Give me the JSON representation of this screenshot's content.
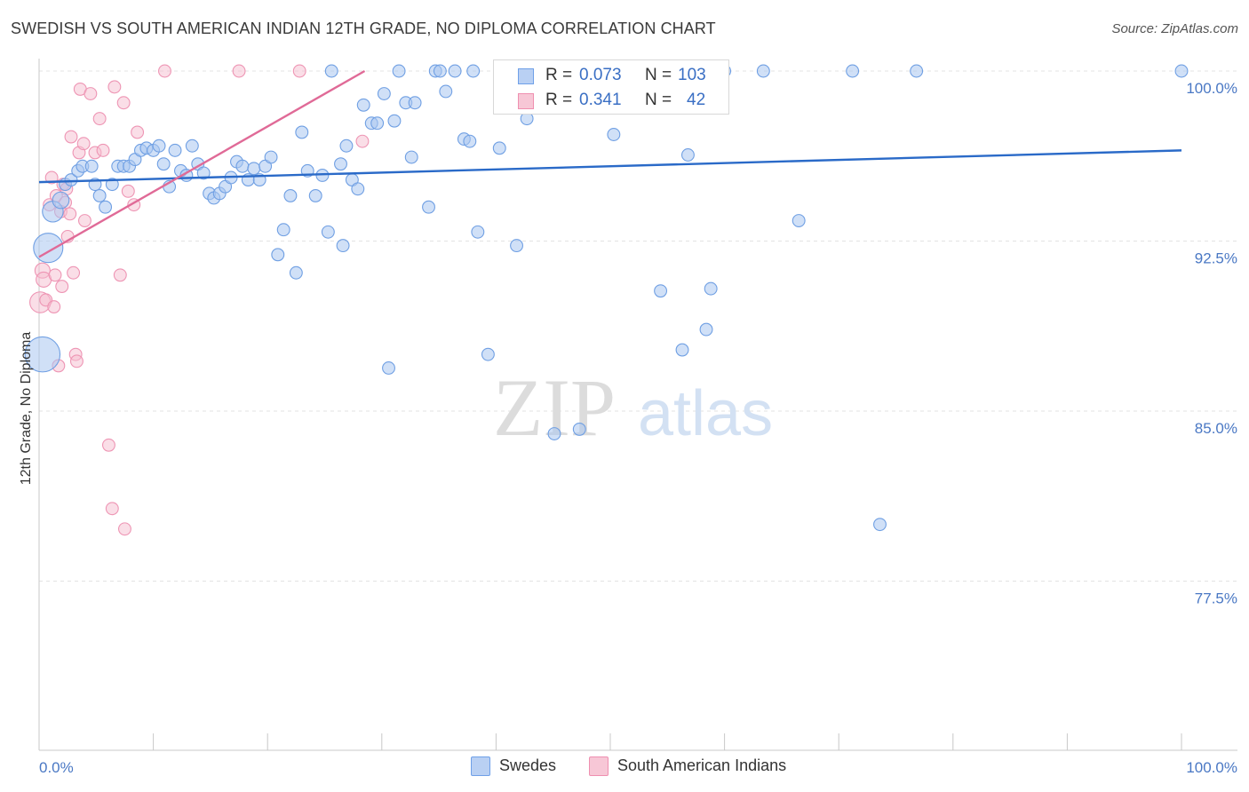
{
  "title": "SWEDISH VS SOUTH AMERICAN INDIAN 12TH GRADE, NO DIPLOMA CORRELATION CHART",
  "source": "Source: ZipAtlas.com",
  "colors": {
    "swedes": "#6fa0e8",
    "swedes_fill": "#b9d0f3",
    "swedes_line": "#2a6ac8",
    "sai": "#ef8fb0",
    "sai_fill": "#f7c7d6",
    "sai_line": "#e06a97",
    "tick": "#4a78c4"
  },
  "legend": {
    "rows": [
      {
        "r_label": "R =",
        "r_value": "0.073",
        "n_label": "N =",
        "n_value": "103"
      },
      {
        "r_label": "R =",
        "r_value": "0.341",
        "n_label": "N =",
        "n_value": "42"
      }
    ]
  },
  "bottom_legend": {
    "swedes": "Swedes",
    "sai": "South American Indians"
  },
  "chart_data": {
    "type": "scatter",
    "title": "SWEDISH VS SOUTH AMERICAN INDIAN 12TH GRADE, NO DIPLOMA CORRELATION CHART",
    "xlabel": "",
    "ylabel": "12th Grade, No Diploma",
    "xlim": [
      0,
      100
    ],
    "ylim": [
      70,
      100.6
    ],
    "x_tick_labels": [
      "0.0%",
      "100.0%"
    ],
    "y_ticks": [
      77.5,
      85.0,
      92.5,
      100.0
    ],
    "y_tick_labels": [
      "77.5%",
      "85.0%",
      "92.5%",
      "100.0%"
    ],
    "grid": "horizontal dashed",
    "legend_position": "top-center",
    "series": [
      {
        "name": "Swedes",
        "r": 0.073,
        "n": 103,
        "trend": {
          "x": [
            0,
            100
          ],
          "y": [
            95.1,
            96.5
          ]
        },
        "points": [
          [
            0.3,
            87.5,
            2.4
          ],
          [
            0.8,
            92.2,
            2.0
          ],
          [
            1.2,
            93.8,
            1.4
          ],
          [
            1.9,
            94.3,
            1.1
          ],
          [
            2.3,
            95.0,
            0.8
          ],
          [
            2.8,
            95.2,
            0.8
          ],
          [
            3.4,
            95.6,
            0.8
          ],
          [
            3.8,
            95.8,
            0.8
          ],
          [
            4.6,
            95.8,
            0.8
          ],
          [
            4.9,
            95.0,
            0.8
          ],
          [
            5.3,
            94.5,
            0.8
          ],
          [
            5.8,
            94.0,
            0.8
          ],
          [
            6.4,
            95.0,
            0.8
          ],
          [
            6.9,
            95.8,
            0.8
          ],
          [
            7.4,
            95.8,
            0.8
          ],
          [
            7.9,
            95.8,
            0.8
          ],
          [
            8.4,
            96.1,
            0.8
          ],
          [
            8.9,
            96.5,
            0.8
          ],
          [
            9.4,
            96.6,
            0.8
          ],
          [
            10.0,
            96.5,
            0.8
          ],
          [
            10.5,
            96.7,
            0.8
          ],
          [
            10.9,
            95.9,
            0.8
          ],
          [
            11.4,
            94.9,
            0.8
          ],
          [
            11.9,
            96.5,
            0.8
          ],
          [
            12.4,
            95.6,
            0.8
          ],
          [
            12.9,
            95.4,
            0.8
          ],
          [
            13.4,
            96.7,
            0.8
          ],
          [
            13.9,
            95.9,
            0.8
          ],
          [
            14.4,
            95.5,
            0.8
          ],
          [
            14.9,
            94.6,
            0.8
          ],
          [
            15.3,
            94.4,
            0.8
          ],
          [
            15.8,
            94.6,
            0.8
          ],
          [
            16.3,
            94.9,
            0.8
          ],
          [
            16.8,
            95.3,
            0.8
          ],
          [
            17.3,
            96.0,
            0.8
          ],
          [
            17.8,
            95.8,
            0.8
          ],
          [
            18.3,
            95.2,
            0.8
          ],
          [
            18.8,
            95.7,
            0.8
          ],
          [
            19.3,
            95.2,
            0.8
          ],
          [
            19.8,
            95.8,
            0.8
          ],
          [
            20.3,
            96.2,
            0.8
          ],
          [
            20.9,
            91.9,
            0.8
          ],
          [
            21.4,
            93.0,
            0.8
          ],
          [
            22.0,
            94.5,
            0.8
          ],
          [
            22.5,
            91.1,
            0.8
          ],
          [
            23.0,
            97.3,
            0.8
          ],
          [
            23.5,
            95.6,
            0.8
          ],
          [
            24.2,
            94.5,
            0.8
          ],
          [
            24.8,
            95.4,
            0.8
          ],
          [
            25.3,
            92.9,
            0.8
          ],
          [
            25.6,
            100.0,
            0.8
          ],
          [
            26.4,
            95.9,
            0.8
          ],
          [
            26.6,
            92.3,
            0.8
          ],
          [
            26.9,
            96.7,
            0.8
          ],
          [
            27.4,
            95.2,
            0.8
          ],
          [
            27.9,
            94.8,
            0.8
          ],
          [
            28.4,
            98.5,
            0.8
          ],
          [
            29.1,
            97.7,
            0.8
          ],
          [
            29.6,
            97.7,
            0.8
          ],
          [
            30.2,
            99.0,
            0.8
          ],
          [
            30.6,
            86.9,
            0.8
          ],
          [
            31.1,
            97.8,
            0.8
          ],
          [
            31.5,
            100.0,
            0.8
          ],
          [
            32.1,
            98.6,
            0.8
          ],
          [
            32.6,
            96.2,
            0.8
          ],
          [
            32.9,
            98.6,
            0.8
          ],
          [
            34.1,
            94.0,
            0.8
          ],
          [
            34.7,
            100.0,
            0.8
          ],
          [
            35.1,
            100.0,
            0.8
          ],
          [
            35.6,
            99.1,
            0.8
          ],
          [
            36.4,
            100.0,
            0.8
          ],
          [
            37.2,
            97.0,
            0.8
          ],
          [
            37.7,
            96.9,
            0.8
          ],
          [
            38.4,
            92.9,
            0.8
          ],
          [
            39.3,
            87.5,
            0.8
          ],
          [
            40.3,
            96.6,
            0.8
          ],
          [
            40.6,
            100.0,
            0.8
          ],
          [
            41.8,
            92.3,
            0.8
          ],
          [
            42.7,
            97.9,
            0.8
          ],
          [
            45.1,
            84.0,
            0.8
          ],
          [
            47.3,
            84.2,
            0.8
          ],
          [
            47.9,
            100.0,
            0.8
          ],
          [
            50.3,
            97.2,
            0.8
          ],
          [
            52.1,
            100.0,
            0.8
          ],
          [
            54.4,
            90.3,
            0.8
          ],
          [
            56.3,
            87.7,
            0.8
          ],
          [
            56.8,
            96.3,
            0.8
          ],
          [
            58.4,
            88.6,
            0.8
          ],
          [
            58.8,
            90.4,
            0.8
          ],
          [
            60.0,
            100.0,
            0.8
          ],
          [
            63.4,
            100.0,
            0.8
          ],
          [
            66.5,
            93.4,
            0.8
          ],
          [
            71.2,
            100.0,
            0.8
          ],
          [
            73.6,
            80.0,
            0.8
          ],
          [
            76.8,
            100.0,
            0.8
          ],
          [
            100.0,
            100.0,
            0.8
          ],
          [
            42.0,
            100.0,
            0.8
          ],
          [
            38.0,
            100.0,
            0.8
          ]
        ]
      },
      {
        "name": "South American Indians",
        "r": 0.341,
        "n": 42,
        "trend": {
          "x": [
            0,
            28.5
          ],
          "y": [
            91.8,
            100.0
          ]
        },
        "points": [
          [
            0.1,
            89.8,
            1.4
          ],
          [
            0.3,
            91.2,
            1.0
          ],
          [
            0.4,
            90.8,
            1.0
          ],
          [
            0.6,
            89.9,
            0.8
          ],
          [
            0.9,
            94.1,
            0.8
          ],
          [
            1.1,
            95.3,
            0.8
          ],
          [
            1.3,
            89.6,
            0.8
          ],
          [
            1.4,
            91.0,
            0.8
          ],
          [
            1.5,
            94.5,
            0.8
          ],
          [
            1.7,
            87.0,
            0.8
          ],
          [
            1.9,
            93.8,
            0.8
          ],
          [
            2.0,
            90.5,
            0.8
          ],
          [
            2.1,
            95.0,
            0.8
          ],
          [
            2.3,
            94.2,
            0.8
          ],
          [
            2.4,
            94.8,
            0.8
          ],
          [
            2.5,
            92.7,
            0.8
          ],
          [
            2.7,
            93.7,
            0.8
          ],
          [
            2.8,
            97.1,
            0.8
          ],
          [
            3.0,
            91.1,
            0.8
          ],
          [
            3.2,
            87.5,
            0.8
          ],
          [
            3.3,
            87.2,
            0.8
          ],
          [
            3.5,
            96.4,
            0.8
          ],
          [
            3.6,
            99.2,
            0.8
          ],
          [
            3.9,
            96.8,
            0.8
          ],
          [
            4.0,
            93.4,
            0.8
          ],
          [
            4.5,
            99.0,
            0.8
          ],
          [
            4.9,
            96.4,
            0.8
          ],
          [
            5.3,
            97.9,
            0.8
          ],
          [
            5.6,
            96.5,
            0.8
          ],
          [
            6.1,
            83.5,
            0.8
          ],
          [
            6.4,
            80.7,
            0.8
          ],
          [
            6.6,
            99.3,
            0.8
          ],
          [
            7.1,
            91.0,
            0.8
          ],
          [
            7.4,
            98.6,
            0.8
          ],
          [
            7.5,
            79.8,
            0.8
          ],
          [
            7.8,
            94.7,
            0.8
          ],
          [
            8.3,
            94.1,
            0.8
          ],
          [
            8.6,
            97.3,
            0.8
          ],
          [
            11.0,
            100.0,
            0.8
          ],
          [
            17.5,
            100.0,
            0.8
          ],
          [
            22.8,
            100.0,
            0.8
          ],
          [
            28.3,
            96.9,
            0.8
          ]
        ]
      }
    ]
  }
}
